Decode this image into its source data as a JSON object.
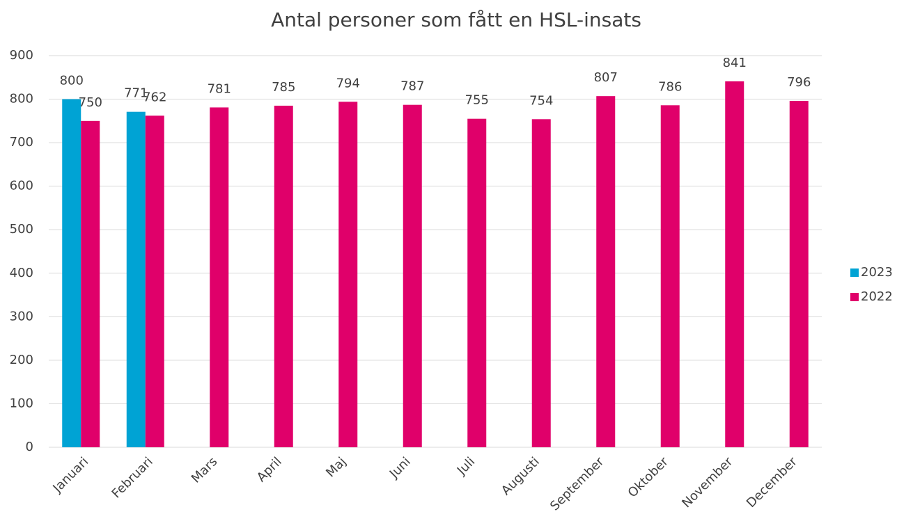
{
  "chart_data": {
    "type": "bar",
    "title": "Antal personer som fått en HSL-insats",
    "categories": [
      "Januari",
      "Februari",
      "Mars",
      "April",
      "Maj",
      "Juni",
      "Juli",
      "Augusti",
      "September",
      "Oktober",
      "November",
      "December"
    ],
    "series": [
      {
        "name": "2023",
        "color": "#00a3d4",
        "values": [
          800,
          771,
          null,
          null,
          null,
          null,
          null,
          null,
          null,
          null,
          null,
          null
        ]
      },
      {
        "name": "2022",
        "color": "#e0006a",
        "values": [
          750,
          762,
          781,
          785,
          794,
          787,
          755,
          754,
          807,
          786,
          841,
          796
        ]
      }
    ],
    "ylim": [
      0,
      900
    ],
    "yticks": [
      0,
      100,
      200,
      300,
      400,
      500,
      600,
      700,
      800,
      900
    ],
    "grid": true,
    "legend": "right"
  }
}
